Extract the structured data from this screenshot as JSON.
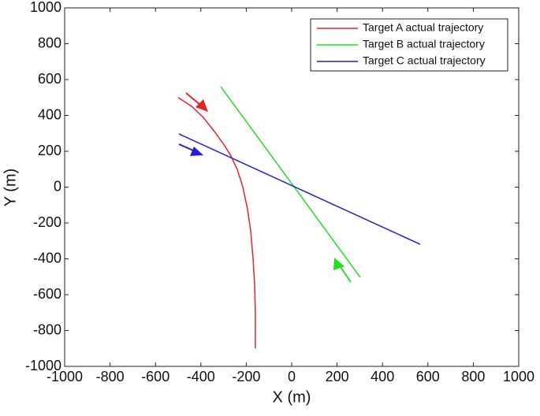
{
  "chart_data": {
    "type": "line",
    "xlabel": "X (m)",
    "ylabel": "Y (m)",
    "xlim": [
      -1000,
      1000
    ],
    "ylim": [
      -1000,
      1000
    ],
    "xticks": [
      -1000,
      -800,
      -600,
      -400,
      -200,
      0,
      200,
      400,
      600,
      800,
      1000
    ],
    "yticks": [
      -1000,
      -800,
      -600,
      -400,
      -200,
      0,
      200,
      400,
      600,
      800,
      1000
    ],
    "legend": "upper right",
    "series": [
      {
        "name": "Target A actual trajectory",
        "color": "#e0262b",
        "x": [
          -500,
          -440,
          -390,
          -340,
          -300,
          -270,
          -240,
          -215,
          -195,
          -180,
          -170,
          -163,
          -160,
          -160
        ],
        "values": [
          500,
          450,
          390,
          310,
          240,
          180,
          100,
          0,
          -120,
          -250,
          -400,
          -550,
          -700,
          -900
        ]
      },
      {
        "name": "Target B actual trajectory",
        "color": "#22dd22",
        "x": [
          -312,
          302
        ],
        "values": [
          560,
          -503
        ]
      },
      {
        "name": "Target C actual trajectory",
        "color": "#2020d0",
        "x": [
          -497,
          566
        ],
        "values": [
          297,
          -319
        ]
      }
    ]
  }
}
